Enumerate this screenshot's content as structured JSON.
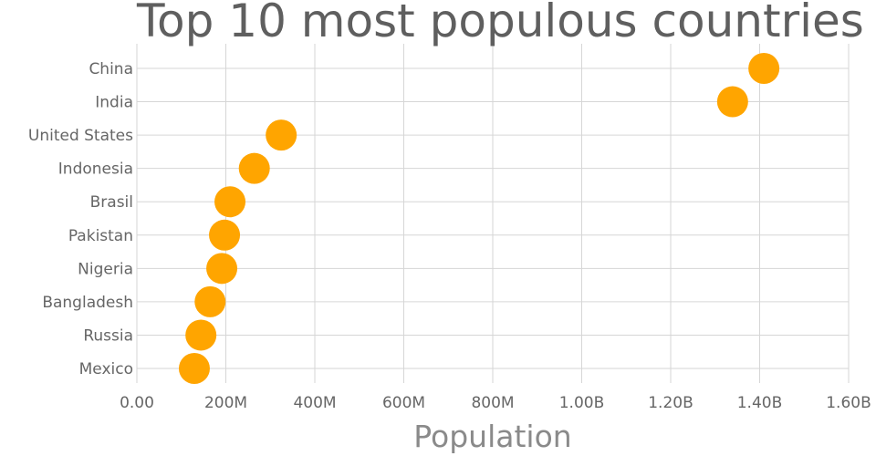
{
  "chart_data": {
    "type": "scatter",
    "title": "Top 10 most populous countries",
    "xlabel": "Population",
    "ylabel": "",
    "xlim": [
      0,
      1600000000
    ],
    "x_ticks": [
      0,
      200000000,
      400000000,
      600000000,
      800000000,
      1000000000,
      1200000000,
      1400000000,
      1600000000
    ],
    "x_tick_labels": [
      "0.00",
      "200M",
      "400M",
      "600M",
      "800M",
      "1.00B",
      "1.20B",
      "1.40B",
      "1.60B"
    ],
    "grid": true,
    "marker_color": "#ffa500",
    "categories": [
      "China",
      "India",
      "United States",
      "Indonesia",
      "Brasil",
      "Pakistan",
      "Nigeria",
      "Bangladesh",
      "Russia",
      "Mexico"
    ],
    "values": [
      1409517397,
      1339180127,
      324459463,
      263991379,
      209288278,
      197015955,
      190886311,
      164669751,
      143989754,
      129163276
    ]
  }
}
